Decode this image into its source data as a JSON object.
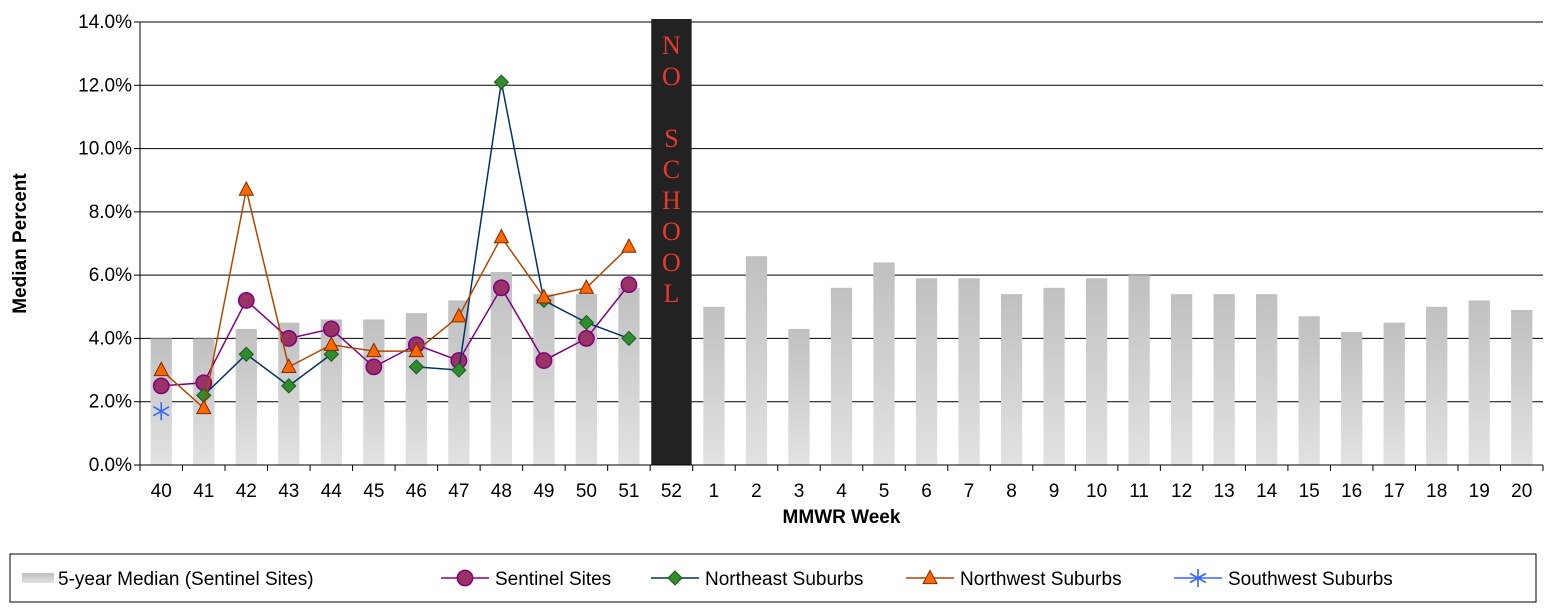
{
  "chart_data": {
    "type": "bar",
    "xlabel": "MMWR Week",
    "ylabel": "Median Percent",
    "ylim": [
      0,
      14
    ],
    "yticks": [
      "0.0%",
      "2.0%",
      "4.0%",
      "6.0%",
      "8.0%",
      "10.0%",
      "12.0%",
      "14.0%"
    ],
    "categories": [
      "40",
      "41",
      "42",
      "43",
      "44",
      "45",
      "46",
      "47",
      "48",
      "49",
      "50",
      "51",
      "52",
      "1",
      "2",
      "3",
      "4",
      "5",
      "6",
      "7",
      "8",
      "9",
      "10",
      "11",
      "12",
      "13",
      "14",
      "15",
      "16",
      "17",
      "18",
      "19",
      "20"
    ],
    "grid": true,
    "legend_position": "bottom",
    "annotation": {
      "week": "52",
      "letters": [
        "N",
        "O",
        "",
        "S",
        "C",
        "H",
        "O",
        "O",
        "L"
      ],
      "color": "#e8392b",
      "bar_color": "#222222"
    },
    "series": [
      {
        "name": "5-year Median (Sentinel Sites)",
        "kind": "bar",
        "color": "#cccccc",
        "values": [
          4.0,
          4.0,
          4.3,
          4.5,
          4.6,
          4.6,
          4.8,
          5.2,
          6.1,
          5.4,
          5.4,
          5.6,
          null,
          5.0,
          6.6,
          4.3,
          5.6,
          6.4,
          5.9,
          5.9,
          5.4,
          5.6,
          5.9,
          6.0,
          5.4,
          5.4,
          5.4,
          4.7,
          4.2,
          4.5,
          5.0,
          5.2,
          4.9
        ]
      },
      {
        "name": "Sentinel Sites",
        "kind": "line",
        "marker": "circle",
        "color": "#800080",
        "fill": "#993366",
        "values": [
          2.5,
          2.6,
          5.2,
          4.0,
          4.3,
          3.1,
          3.8,
          3.3,
          5.6,
          3.3,
          4.0,
          5.7,
          null,
          null,
          null,
          null,
          null,
          null,
          null,
          null,
          null,
          null,
          null,
          null,
          null,
          null,
          null,
          null,
          null,
          null,
          null,
          null,
          null
        ]
      },
      {
        "name": "Northeast Suburbs",
        "kind": "line",
        "marker": "diamond",
        "color": "#003366",
        "fill": "#2e8b2e",
        "values": [
          null,
          2.2,
          3.5,
          2.5,
          3.5,
          null,
          3.1,
          3.0,
          12.1,
          5.2,
          4.5,
          4.0,
          null,
          null,
          null,
          null,
          null,
          null,
          null,
          null,
          null,
          null,
          null,
          null,
          null,
          null,
          null,
          null,
          null,
          null,
          null,
          null,
          null
        ]
      },
      {
        "name": "Northwest Suburbs",
        "kind": "line",
        "marker": "triangle",
        "color": "#b34700",
        "fill": "#ff6600",
        "values": [
          3.0,
          1.8,
          8.7,
          3.1,
          3.8,
          3.6,
          3.6,
          4.7,
          7.2,
          5.3,
          5.6,
          6.9,
          null,
          null,
          null,
          null,
          null,
          null,
          null,
          null,
          null,
          null,
          null,
          null,
          null,
          null,
          null,
          null,
          null,
          null,
          null,
          null,
          null
        ]
      },
      {
        "name": "Southwest Suburbs",
        "kind": "line",
        "marker": "asterisk",
        "color": "#3366ff",
        "fill": "#3366ff",
        "values": [
          1.7,
          null,
          null,
          null,
          null,
          null,
          null,
          null,
          null,
          null,
          null,
          null,
          null,
          null,
          null,
          null,
          null,
          null,
          null,
          null,
          null,
          null,
          null,
          null,
          null,
          null,
          null,
          null,
          null,
          null,
          null,
          null,
          null
        ]
      }
    ]
  }
}
